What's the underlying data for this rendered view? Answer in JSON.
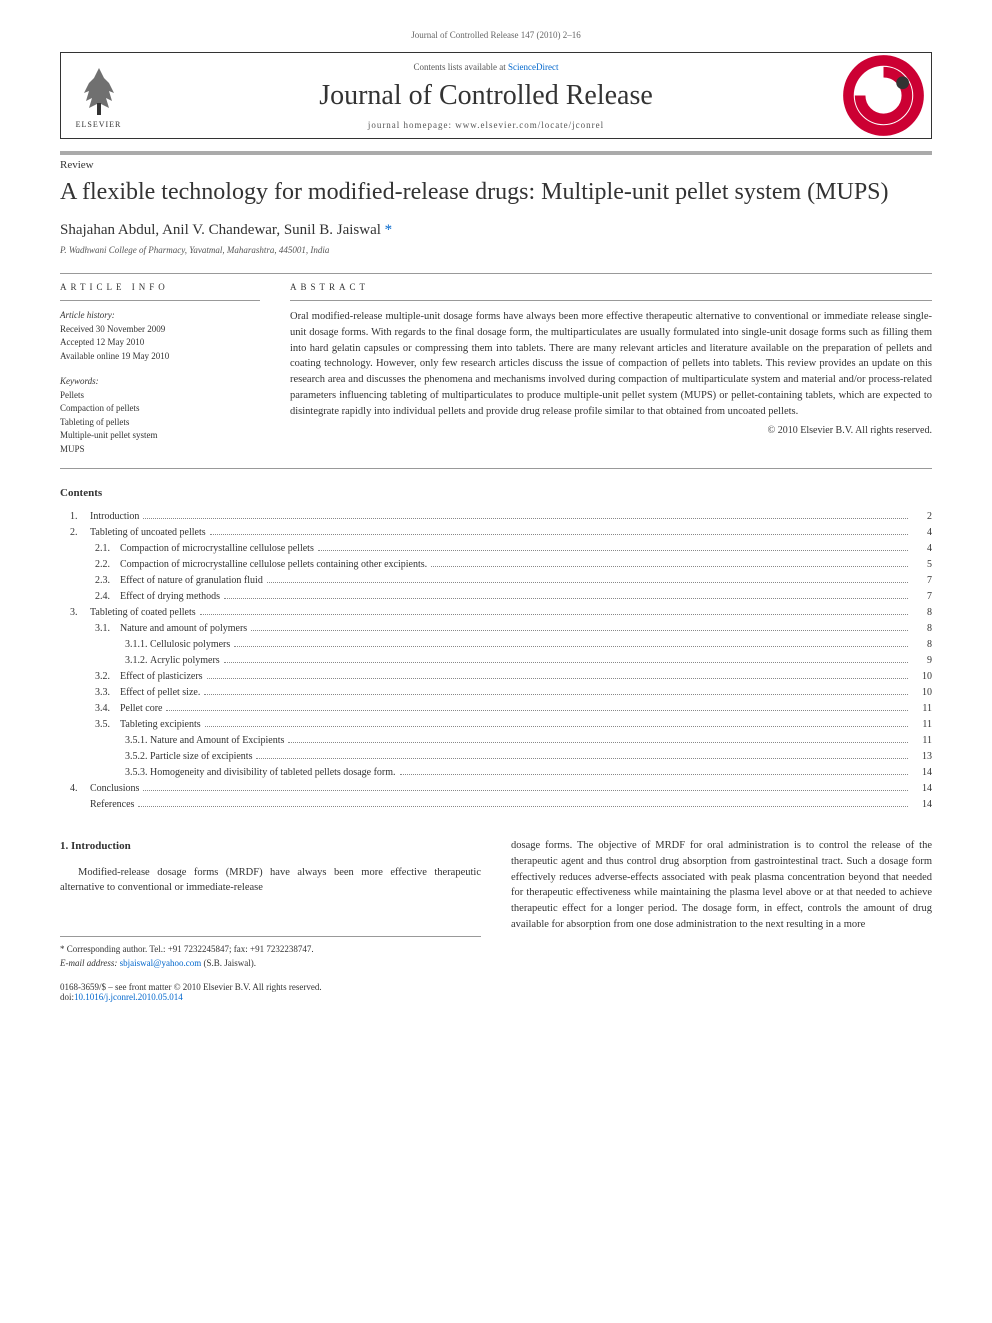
{
  "header": {
    "citation": "Journal of Controlled Release 147 (2010) 2–16",
    "contents_available": "Contents lists available at ",
    "sciencedirect": "ScienceDirect",
    "journal_name": "Journal of Controlled Release",
    "homepage_label": "journal homepage: ",
    "homepage_url": "www.elsevier.com/locate/jconrel",
    "elsevier_label": "ELSEVIER"
  },
  "article": {
    "type": "Review",
    "title": "A flexible technology for modified-release drugs: Multiple-unit pellet system (MUPS)",
    "authors": "Shajahan Abdul, Anil V. Chandewar, Sunil B. Jaiswal",
    "corr_mark": "*",
    "affiliation": "P. Wadhwani College of Pharmacy, Yavatmal, Maharashtra, 445001, India"
  },
  "info": {
    "heading": "ARTICLE INFO",
    "history_label": "Article history:",
    "received": "Received 30 November 2009",
    "accepted": "Accepted 12 May 2010",
    "available": "Available online 19 May 2010",
    "keywords_label": "Keywords:",
    "kw1": "Pellets",
    "kw2": "Compaction of pellets",
    "kw3": "Tableting of pellets",
    "kw4": "Multiple-unit pellet system",
    "kw5": "MUPS"
  },
  "abstract": {
    "heading": "ABSTRACT",
    "text": "Oral modified-release multiple-unit dosage forms have always been more effective therapeutic alternative to conventional or immediate release single-unit dosage forms. With regards to the final dosage form, the multiparticulates are usually formulated into single-unit dosage forms such as filling them into hard gelatin capsules or compressing them into tablets. There are many relevant articles and literature available on the preparation of pellets and coating technology. However, only few research articles discuss the issue of compaction of pellets into tablets. This review provides an update on this research area and discusses the phenomena and mechanisms involved during compaction of multiparticulate system and material and/or process-related parameters influencing tableting of multiparticulates to produce multiple-unit pellet system (MUPS) or pellet-containing tablets, which are expected to disintegrate rapidly into individual pellets and provide drug release profile similar to that obtained from uncoated pellets.",
    "copyright": "© 2010 Elsevier B.V. All rights reserved."
  },
  "contents": {
    "heading": "Contents",
    "items": [
      {
        "level": 1,
        "num": "1.",
        "text": "Introduction",
        "page": "2"
      },
      {
        "level": 1,
        "num": "2.",
        "text": "Tableting of uncoated pellets",
        "page": "4"
      },
      {
        "level": 2,
        "num": "2.1.",
        "text": "Compaction of microcrystalline cellulose pellets",
        "page": "4"
      },
      {
        "level": 2,
        "num": "2.2.",
        "text": "Compaction of microcrystalline cellulose pellets containing other excipients.",
        "page": "5"
      },
      {
        "level": 2,
        "num": "2.3.",
        "text": "Effect of nature of granulation fluid",
        "page": "7"
      },
      {
        "level": 2,
        "num": "2.4.",
        "text": "Effect of drying methods",
        "page": "7"
      },
      {
        "level": 1,
        "num": "3.",
        "text": "Tableting of coated pellets",
        "page": "8"
      },
      {
        "level": 2,
        "num": "3.1.",
        "text": "Nature and amount of polymers",
        "page": "8"
      },
      {
        "level": 3,
        "num": "3.1.1.",
        "text": "Cellulosic polymers",
        "page": "8"
      },
      {
        "level": 3,
        "num": "3.1.2.",
        "text": "Acrylic polymers",
        "page": "9"
      },
      {
        "level": 2,
        "num": "3.2.",
        "text": "Effect of plasticizers",
        "page": "10"
      },
      {
        "level": 2,
        "num": "3.3.",
        "text": "Effect of pellet size.",
        "page": "10"
      },
      {
        "level": 2,
        "num": "3.4.",
        "text": "Pellet core",
        "page": "11"
      },
      {
        "level": 2,
        "num": "3.5.",
        "text": "Tableting excipients",
        "page": "11"
      },
      {
        "level": 3,
        "num": "3.5.1.",
        "text": "Nature and Amount of Excipients",
        "page": "11"
      },
      {
        "level": 3,
        "num": "3.5.2.",
        "text": "Particle size of excipients",
        "page": "13"
      },
      {
        "level": 3,
        "num": "3.5.3.",
        "text": "Homogeneity and divisibility of tableted pellets dosage form.",
        "page": "14"
      },
      {
        "level": 1,
        "num": "4.",
        "text": "Conclusions",
        "page": "14"
      },
      {
        "level": 1,
        "num": "",
        "text": "References",
        "page": "14"
      }
    ]
  },
  "intro": {
    "heading": "1. Introduction",
    "col1": "Modified-release dosage forms (MRDF) have always been more effective therapeutic alternative to conventional or immediate-release",
    "col2": "dosage forms. The objective of MRDF for oral administration is to control the release of the therapeutic agent and thus control drug absorption from gastrointestinal tract. Such a dosage form effectively reduces adverse-effects associated with peak plasma concentration beyond that needed for therapeutic effectiveness while maintaining the plasma level above or at that needed to achieve therapeutic effect for a longer period. The dosage form, in effect, controls the amount of drug available for absorption from one dose administration to the next resulting in a more"
  },
  "footer": {
    "corr_line": "* Corresponding author. Tel.: +91 7232245847; fax: +91 7232238747.",
    "email_label": "E-mail address: ",
    "email": "sbjaiswal@yahoo.com",
    "email_name": " (S.B. Jaiswal).",
    "issn": "0168-3659/$ – see front matter © 2010 Elsevier B.V. All rights reserved.",
    "doi_label": "doi:",
    "doi": "10.1016/j.jconrel.2010.05.014"
  },
  "colors": {
    "link": "#0066cc",
    "text": "#333333",
    "border": "#999999",
    "logo_red": "#cc0033",
    "logo_orange": "#e67e22"
  }
}
